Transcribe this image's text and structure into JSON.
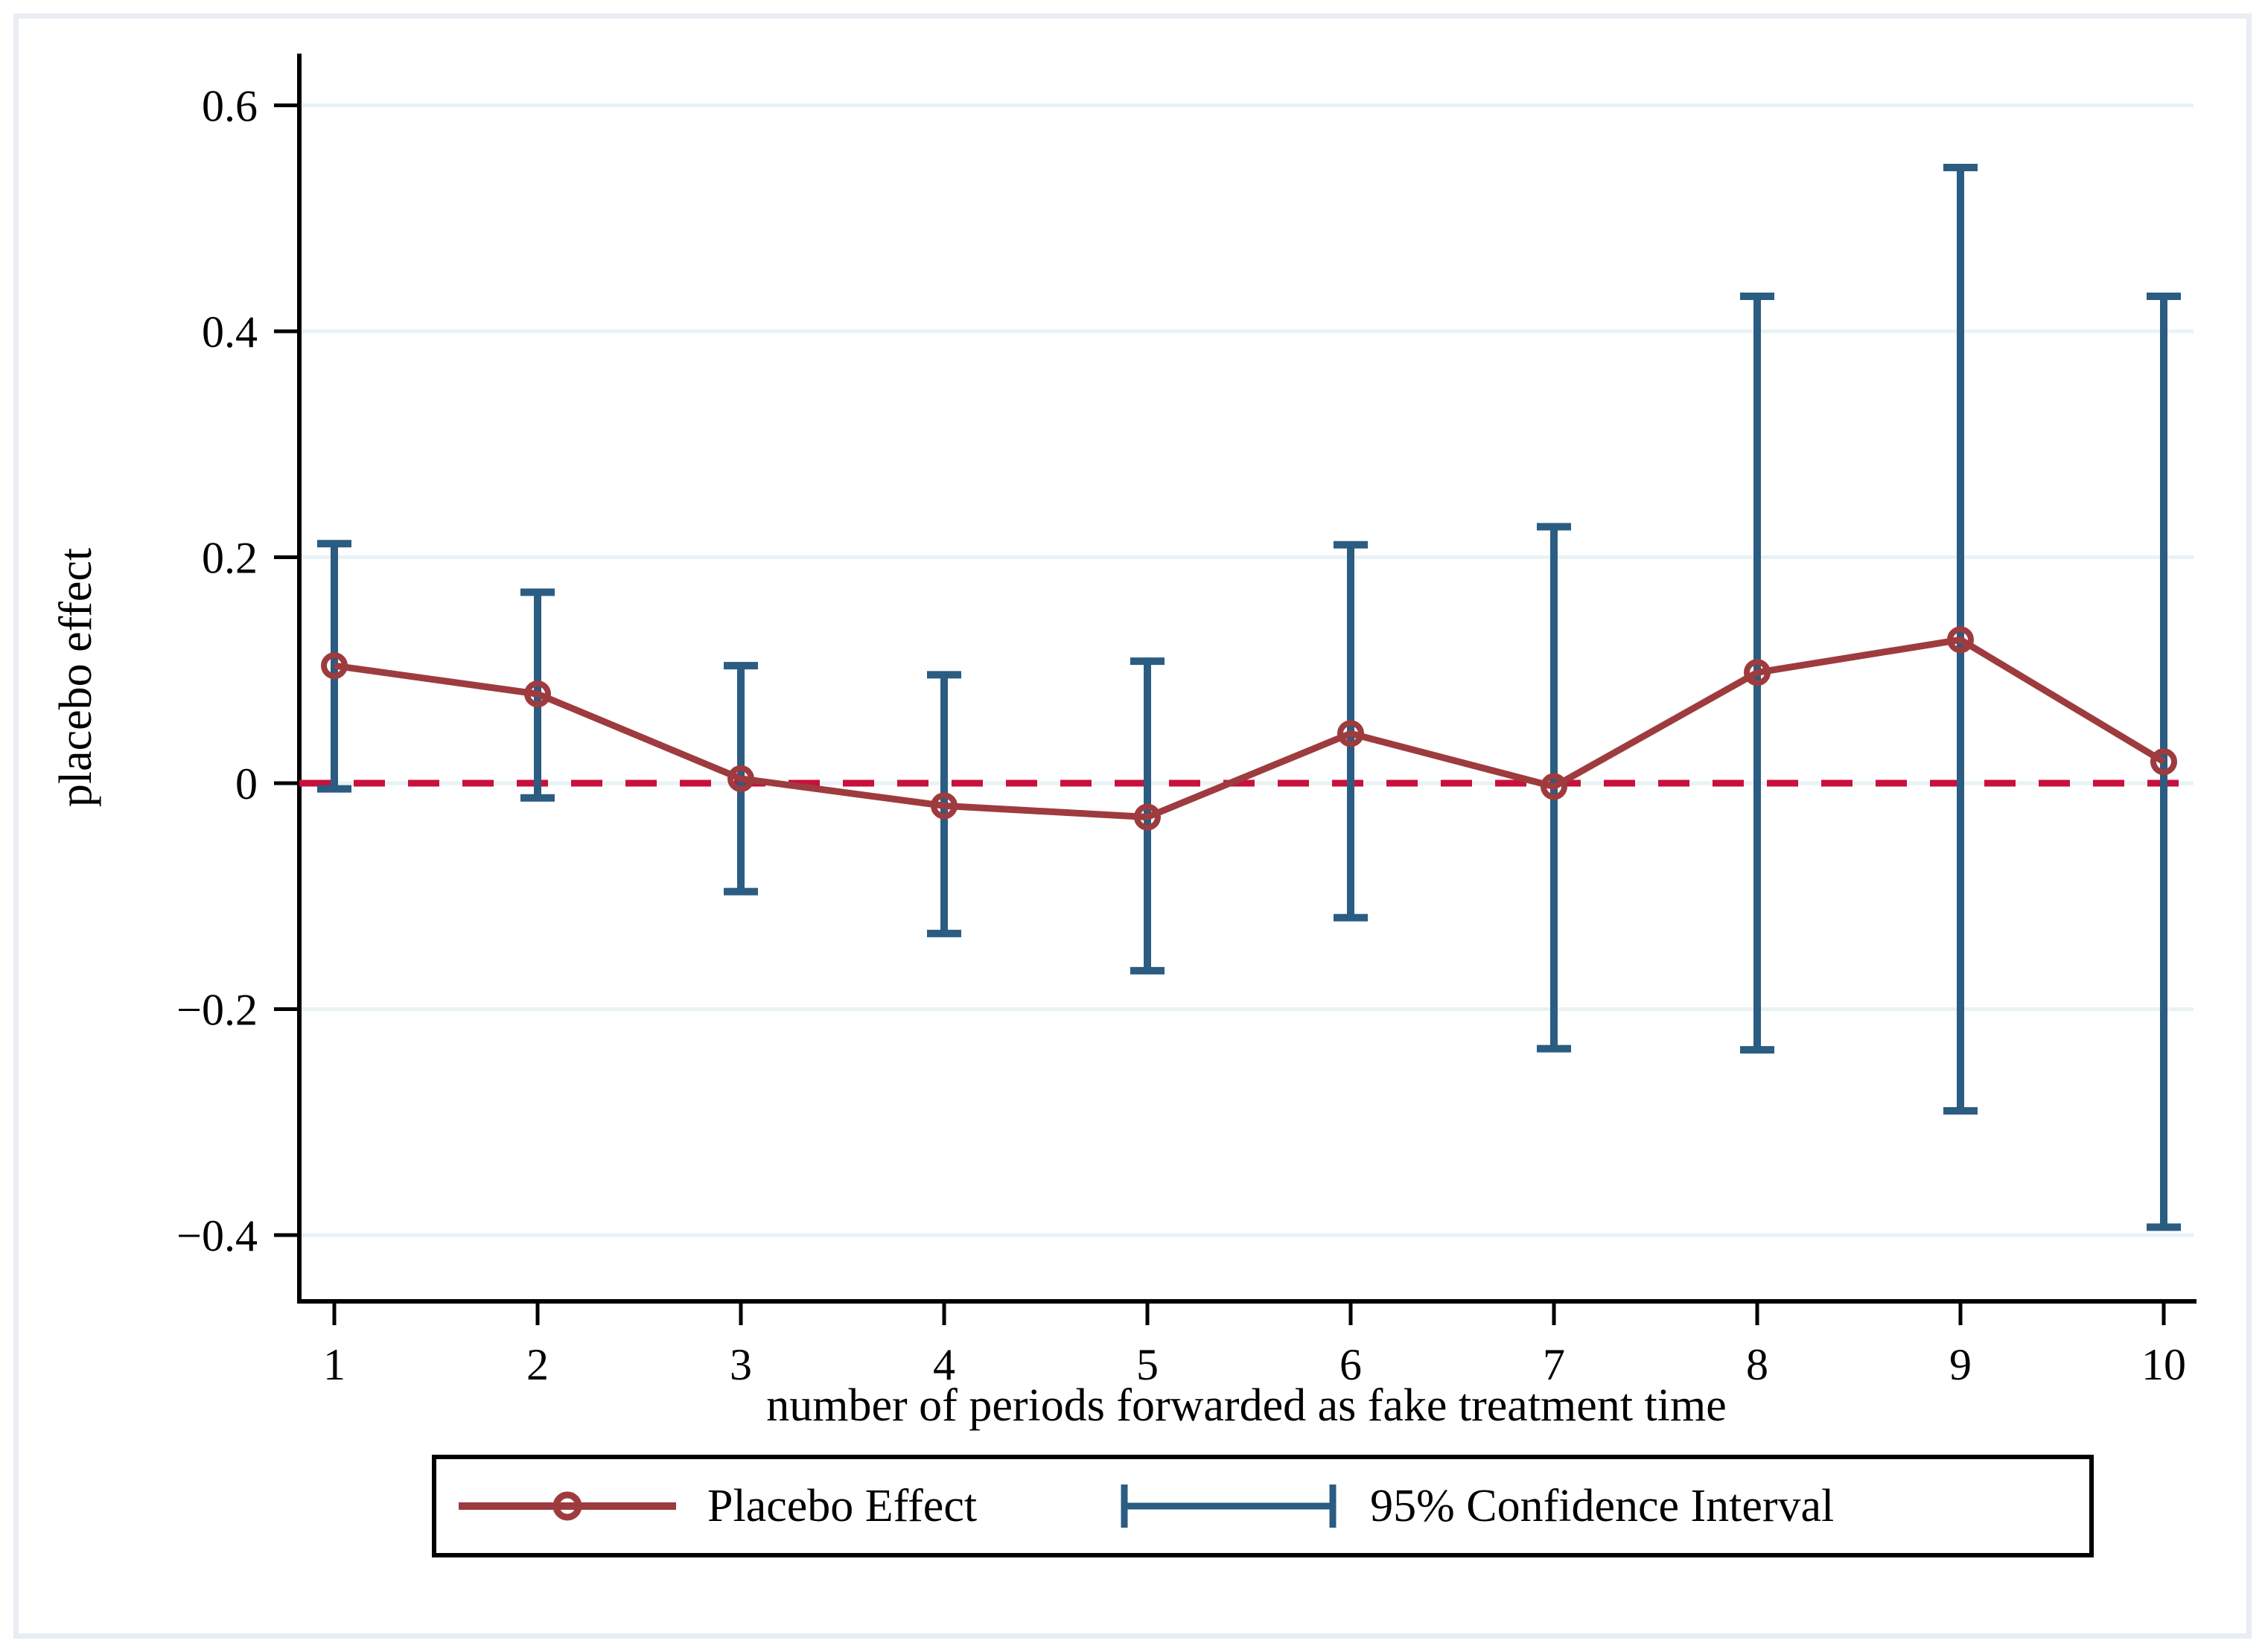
{
  "figure": {
    "background": "#ffffff",
    "border_color": "#e7edf2"
  },
  "chart_data": {
    "type": "line",
    "title": "",
    "xlabel": "number of periods forwarded as fake treatment time",
    "ylabel": "placebo effect",
    "x": [
      1,
      2,
      3,
      4,
      5,
      6,
      7,
      8,
      9,
      10
    ],
    "x_tick_labels": [
      "1",
      "2",
      "3",
      "4",
      "5",
      "6",
      "7",
      "8",
      "9",
      "10"
    ],
    "yticks": [
      {
        "value": 0.6,
        "label": "0.6"
      },
      {
        "value": 0.4,
        "label": "0.4"
      },
      {
        "value": 0.2,
        "label": "0.2"
      },
      {
        "value": 0,
        "label": "0"
      },
      {
        "value": -0.2,
        "label": "−0.2"
      },
      {
        "value": -0.4,
        "label": "−0.4"
      }
    ],
    "ylim": [
      -0.459,
      0.645
    ],
    "grid": true,
    "legend_position": "bottom",
    "zero_line": {
      "y": 0,
      "style": "dashed",
      "color": "#c8103c"
    },
    "series": [
      {
        "name": "Placebo Effect",
        "type": "line+marker",
        "marker": "open-circle",
        "color": "#9e3b3e",
        "values": [
          0.104,
          0.079,
          0.004,
          -0.02,
          -0.03,
          0.044,
          -0.003,
          0.098,
          0.127,
          0.019
        ]
      },
      {
        "name": "95% Confidence Interval",
        "type": "errorbar",
        "color": "#2b5c82",
        "lower": [
          -0.005,
          -0.013,
          -0.096,
          -0.133,
          -0.166,
          -0.119,
          -0.235,
          -0.236,
          -0.29,
          -0.393
        ],
        "upper": [
          0.212,
          0.169,
          0.104,
          0.096,
          0.108,
          0.211,
          0.227,
          0.431,
          0.545,
          0.431
        ]
      }
    ]
  },
  "legend": {
    "items": [
      {
        "label": "Placebo Effect",
        "swatch": "line-with-open-circle",
        "color": "#9e3b3e"
      },
      {
        "label": "95% Confidence Interval",
        "swatch": "horizontal-errorbar",
        "color": "#2b5c82"
      }
    ]
  },
  "colors": {
    "grid": "#e9f2f5",
    "axis": "#000000",
    "maroon": "#9e3b3e",
    "navy": "#2b5c82",
    "cranberry": "#c8103c"
  }
}
